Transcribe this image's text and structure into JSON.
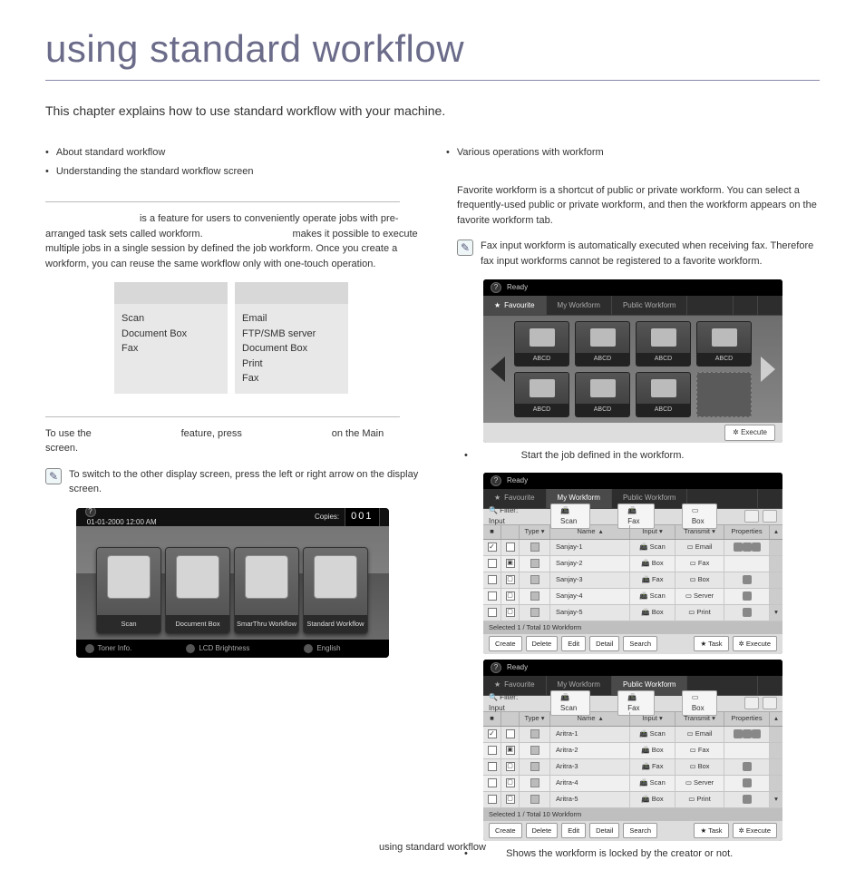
{
  "page": {
    "title": "using standard workflow",
    "intro": "This chapter explains how to use standard workflow with your machine.",
    "footer": "using standard workflow"
  },
  "toc": {
    "left": [
      "About standard workflow",
      "Understanding the standard workflow screen"
    ],
    "right": [
      "Various operations with workform"
    ]
  },
  "left_col": {
    "about_text_1": " is a feature for users to conveniently operate jobs with pre-arranged task sets called workform. ",
    "about_text_2": " makes it possible to execute multiple jobs in a single session by defined the job workform. Once you create a workform, you can reuse the same workflow only with one-touch operation.",
    "table": {
      "col1": [
        "Scan",
        "Document Box",
        "Fax"
      ],
      "col2": [
        "Email",
        "FTP/SMB server",
        "Document Box",
        "Print",
        "Fax"
      ]
    },
    "use_text_1": "To use the ",
    "use_text_2": " feature, press ",
    "use_text_3": " on the Main screen.",
    "note1": "To switch to the other display screen, press the left or right arrow on the display screen."
  },
  "main_screen": {
    "date": "01-01-2000 12:00 AM",
    "copies_label": "Copies:",
    "copies_value": "001",
    "tiles": [
      "Scan",
      "Document Box",
      "SmarThru Workflow",
      "Standard Workflow"
    ],
    "bottom": {
      "toner": "Toner Info.",
      "bright": "LCD Brightness",
      "lang": "English"
    }
  },
  "right_col": {
    "fav_text": "Favorite workform is a shortcut of public or private workform. You can select a frequently-used public or private workform, and then the workform appears on the favorite workform tab.",
    "fav_note": "Fax input workform is automatically executed when receiving fax. Therefore fax input workforms cannot be registered to a favorite workform.",
    "caption_execute": "Start the job defined in the workform.",
    "caption_lock": "Shows the workform is locked by the creator or not."
  },
  "fav_screen": {
    "ready": "Ready",
    "tabs": {
      "fav": "Favourite",
      "my": "My Workform",
      "pub": "Public Workform"
    },
    "cell_label": "ABCD",
    "execute": "Execute"
  },
  "list_screen": {
    "filter_label": "Filter: Input",
    "tool_scan": "Scan",
    "tool_fax": "Fax",
    "tool_box": "Box",
    "head": {
      "type": "Type",
      "name": "Name",
      "input": "Input",
      "transmit": "Transmit",
      "prop": "Properties"
    },
    "status": "Selected 1 / Total 10 Workform",
    "btns": {
      "create": "Create",
      "delete": "Delete",
      "edit": "Edit",
      "detail": "Detail",
      "search": "Search",
      "task": "Task",
      "execute": "Execute"
    },
    "set1": [
      {
        "name": "Sanjay-1",
        "input": "Scan",
        "transmit": "Email",
        "checked": true,
        "lock": "",
        "prop": "flags"
      },
      {
        "name": "Sanjay-2",
        "input": "Box",
        "transmit": "Fax",
        "checked": false,
        "lock": "▣",
        "prop": ""
      },
      {
        "name": "Sanjay-3",
        "input": "Fax",
        "transmit": "Box",
        "checked": false,
        "lock": "▢",
        "prop": "p"
      },
      {
        "name": "Sanjay-4",
        "input": "Scan",
        "transmit": "Server",
        "checked": false,
        "lock": "▢",
        "prop": "f"
      },
      {
        "name": "Sanjay-5",
        "input": "Box",
        "transmit": "Print",
        "checked": false,
        "lock": "▢",
        "prop": "p"
      }
    ],
    "set2": [
      {
        "name": "Aritra-1",
        "input": "Scan",
        "transmit": "Email",
        "checked": true,
        "lock": "",
        "prop": "flags"
      },
      {
        "name": "Aritra-2",
        "input": "Box",
        "transmit": "Fax",
        "checked": false,
        "lock": "▣",
        "prop": ""
      },
      {
        "name": "Aritra-3",
        "input": "Fax",
        "transmit": "Box",
        "checked": false,
        "lock": "▢",
        "prop": "p"
      },
      {
        "name": "Aritra-4",
        "input": "Scan",
        "transmit": "Server",
        "checked": false,
        "lock": "▢",
        "prop": "f"
      },
      {
        "name": "Aritra-5",
        "input": "Box",
        "transmit": "Print",
        "checked": false,
        "lock": "▢",
        "prop": "p"
      }
    ]
  },
  "icons": {
    "pencil": "✎",
    "check": "✓",
    "star": "★",
    "gear": "✲",
    "q": "?",
    "tri_dn": "▾",
    "sq": "▫"
  },
  "colors": {
    "title": "#6b6b8a",
    "rule": "#8888aa",
    "text": "#333333",
    "box_bg": "#e8e8e8",
    "box_head": "#d8d8d8",
    "screen_dark": "#1a1a1a",
    "screen_body": "#808080",
    "light_panel": "#dddddd"
  }
}
